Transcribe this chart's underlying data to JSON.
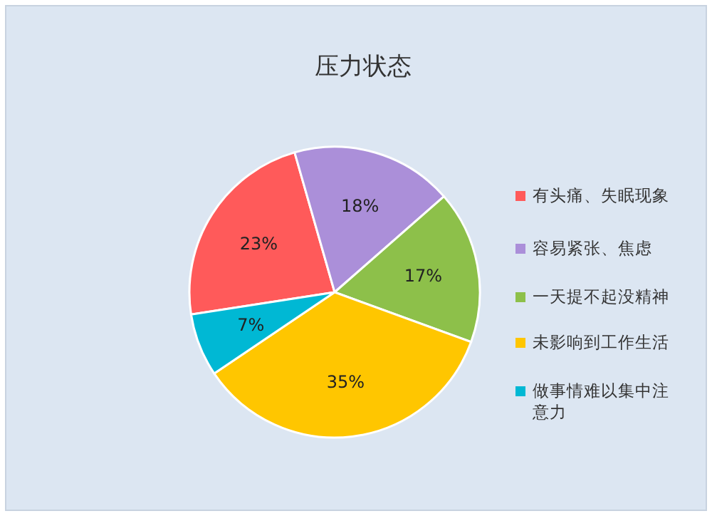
{
  "chart_data": {
    "type": "pie",
    "title": "压力状态",
    "categories": [
      "有头痛、失眠现象",
      "容易紧张、焦虑",
      "一天提不起没精神",
      "未影响到工作生活",
      "做事情难以集中注意力"
    ],
    "values": [
      23,
      18,
      17,
      35,
      7
    ],
    "colors": [
      "#ff5a5a",
      "#ab8fd9",
      "#8dc04a",
      "#ffc600",
      "#00b8d4"
    ],
    "value_labels": [
      "23%",
      "18%",
      "17%",
      "35%",
      "7%"
    ],
    "legend": "right"
  }
}
